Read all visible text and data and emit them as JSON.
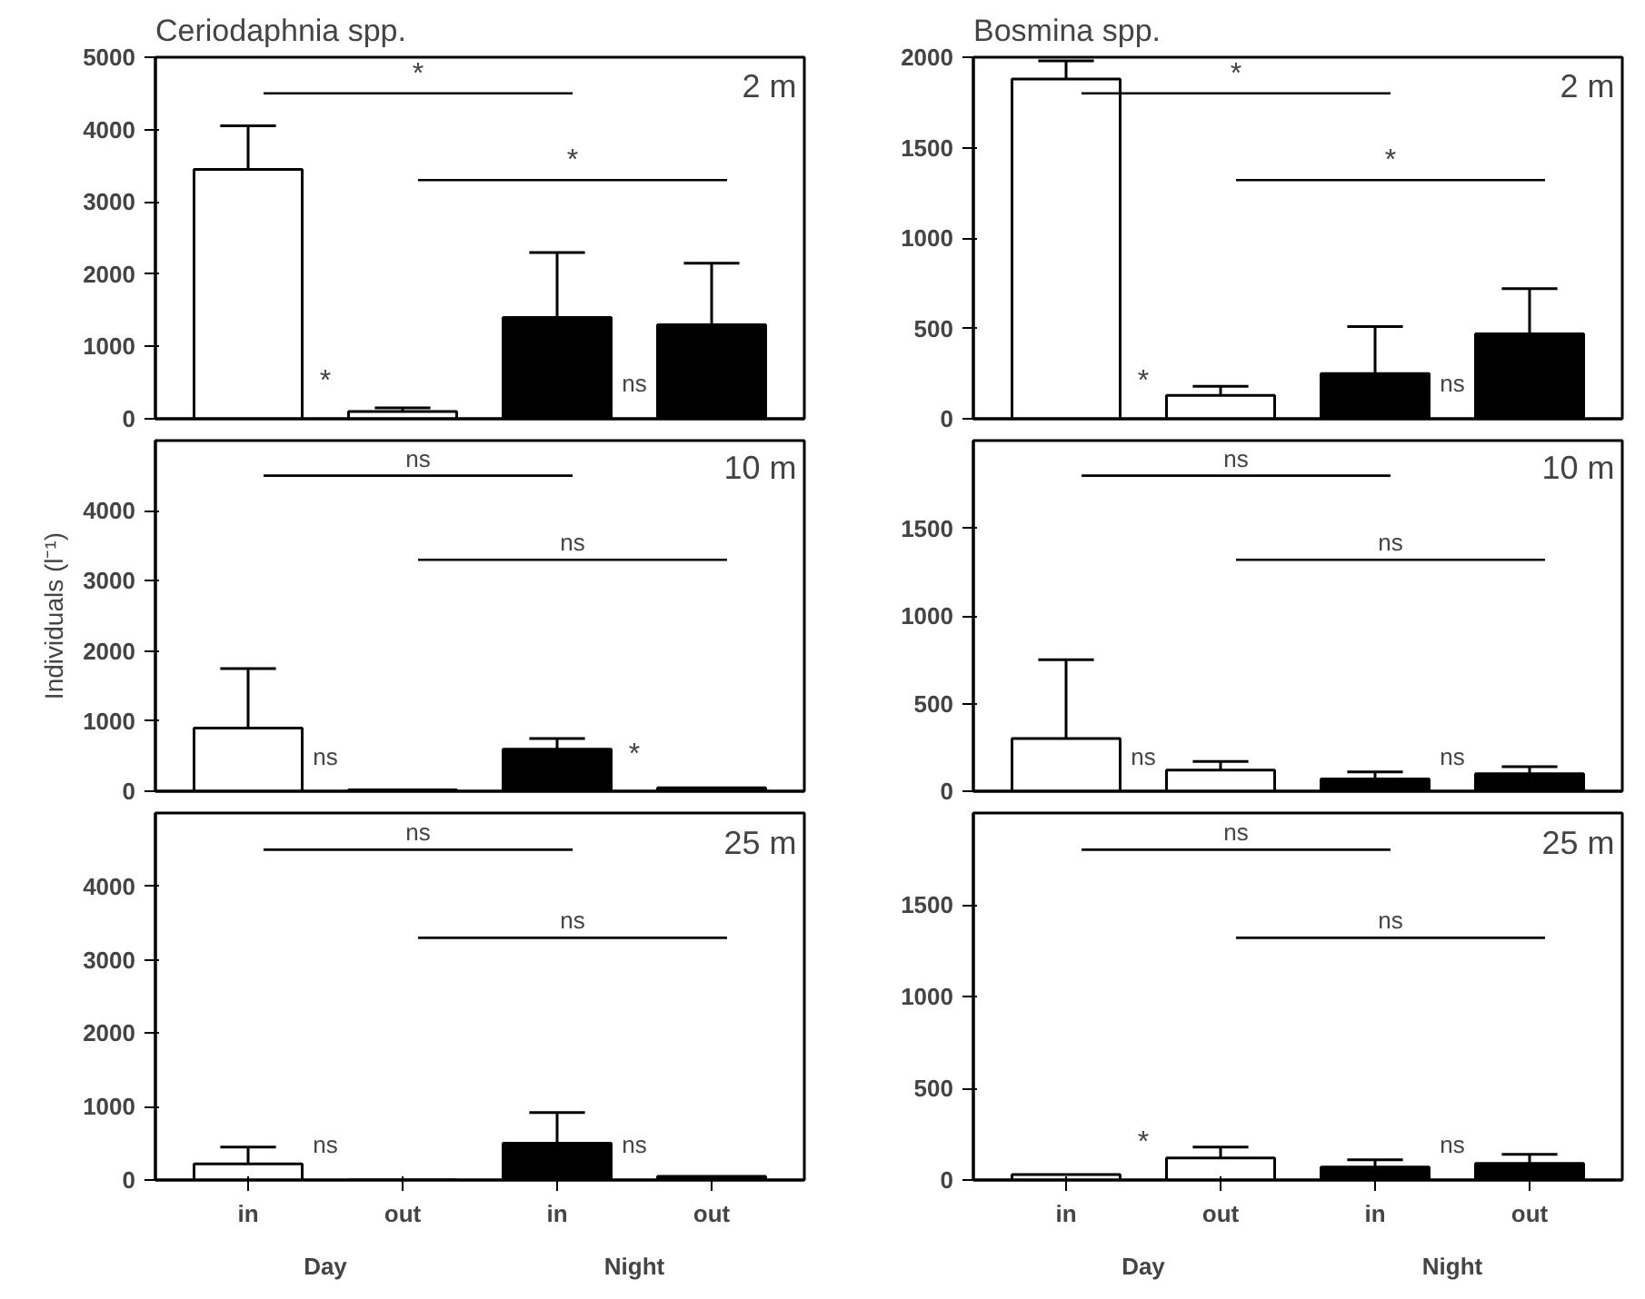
{
  "chart_data": [
    {
      "type": "bar",
      "title": "Ceriodaphnia spp.",
      "categories": [
        null,
        null,
        null,
        null
      ],
      "values": [
        3450,
        100,
        1400,
        1300
      ],
      "colors": [
        "#ffffff",
        "#ffffff",
        "#000000",
        "#000000"
      ],
      "errors": [
        [
          3450,
          4050
        ],
        [
          100,
          150
        ],
        [
          1400,
          2300
        ],
        [
          1300,
          2150
        ]
      ],
      "ylim": [
        0,
        5000
      ],
      "yticks": [
        0,
        1000,
        2000,
        3000,
        4000,
        5000
      ],
      "annotations": [
        "*",
        "*",
        "*",
        "ns",
        "2 m"
      ]
    },
    {
      "type": "bar",
      "title": "Bosmina spp.",
      "categories": [
        null,
        null,
        null,
        null
      ],
      "values": [
        1880,
        130,
        250,
        470
      ],
      "colors": [
        "#ffffff",
        "#ffffff",
        "#000000",
        "#000000"
      ],
      "errors": [
        [
          1880,
          1980
        ],
        [
          130,
          180
        ],
        [
          250,
          510
        ],
        [
          470,
          720
        ]
      ],
      "ylim": [
        0,
        2000
      ],
      "yticks": [
        0,
        500,
        1000,
        1500,
        2000
      ],
      "annotations": [
        "*",
        "*",
        "*",
        "ns",
        "2 m"
      ]
    },
    {
      "type": "bar",
      "ylabel": "Individuals (l⁻¹)",
      "categories": [
        null,
        null,
        null,
        null
      ],
      "values": [
        900,
        20,
        600,
        50
      ],
      "colors": [
        "#ffffff",
        "#ffffff",
        "#000000",
        "#000000"
      ],
      "errors": [
        [
          900,
          1750
        ],
        null,
        [
          600,
          750
        ],
        null
      ],
      "ylim": [
        0,
        5000
      ],
      "yticks": [
        0,
        1000,
        2000,
        3000,
        4000
      ],
      "annotations": [
        "ns",
        "ns",
        "ns",
        "*",
        "10 m"
      ]
    },
    {
      "type": "bar",
      "categories": [
        null,
        null,
        null,
        null
      ],
      "values": [
        300,
        120,
        70,
        100
      ],
      "colors": [
        "#ffffff",
        "#ffffff",
        "#000000",
        "#000000"
      ],
      "errors": [
        [
          300,
          750
        ],
        [
          120,
          170
        ],
        [
          70,
          110
        ],
        [
          100,
          140
        ]
      ],
      "ylim": [
        0,
        2000
      ],
      "yticks": [
        0,
        500,
        1000,
        1500
      ],
      "annotations": [
        "ns",
        "ns",
        "ns",
        "ns",
        "10 m"
      ]
    },
    {
      "type": "bar",
      "categories": [
        "in",
        "out",
        "in",
        "out"
      ],
      "values": [
        220,
        null,
        500,
        50
      ],
      "colors": [
        "#ffffff",
        "#ffffff",
        "#000000",
        "#000000"
      ],
      "errors": [
        [
          220,
          450
        ],
        null,
        [
          500,
          920
        ],
        null
      ],
      "ylim": [
        0,
        5000
      ],
      "yticks": [
        0,
        1000,
        2000,
        3000,
        4000
      ],
      "annotations": [
        "ns",
        "ns",
        "ns",
        "ns",
        "25 m",
        "Day",
        "Night"
      ]
    },
    {
      "type": "bar",
      "categories": [
        "in",
        "out",
        "in",
        "out"
      ],
      "values": [
        30,
        120,
        70,
        90
      ],
      "colors": [
        "#ffffff",
        "#ffffff",
        "#000000",
        "#000000"
      ],
      "errors": [
        null,
        [
          120,
          180
        ],
        [
          70,
          110
        ],
        [
          90,
          140
        ]
      ],
      "ylim": [
        0,
        2000
      ],
      "yticks": [
        0,
        500,
        1000,
        1500
      ],
      "annotations": [
        "ns",
        "ns",
        "*",
        "ns",
        "25 m",
        "Day",
        "Night"
      ]
    }
  ]
}
